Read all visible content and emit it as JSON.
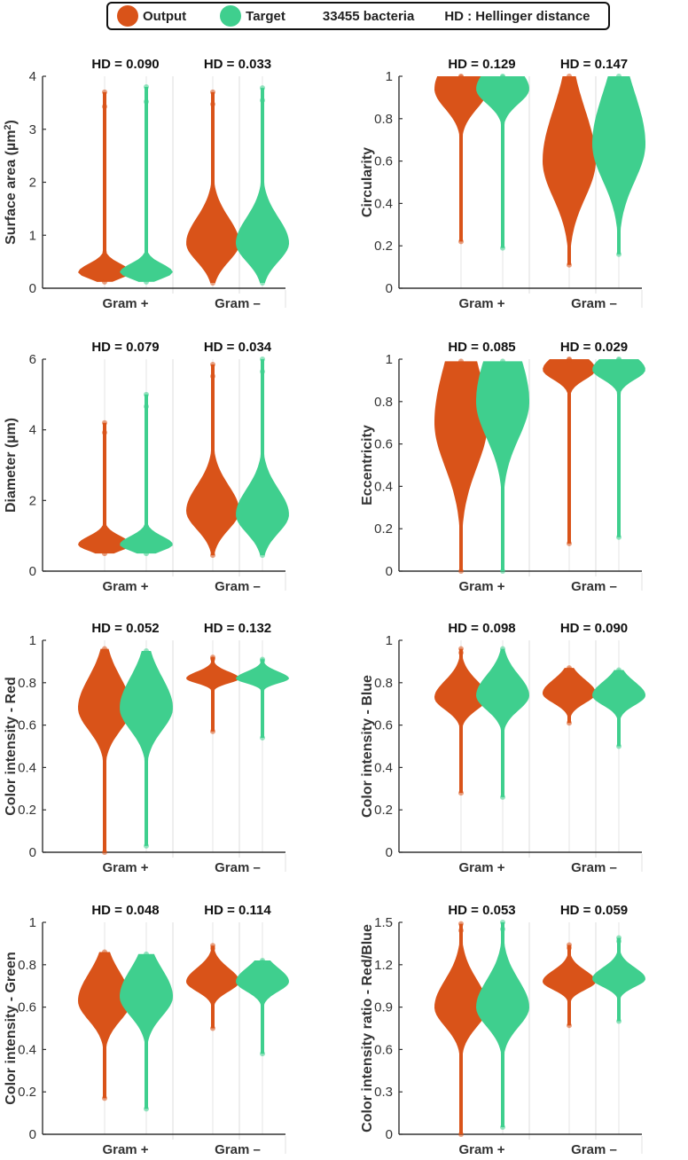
{
  "legend": {
    "output_label": "Output",
    "target_label": "Target",
    "count_label": "33455 bacteria",
    "hd_label": "HD : Hellinger distance",
    "colors": {
      "output": "#d95319",
      "target": "#3fcf8e"
    }
  },
  "chart_data": [
    {
      "type": "violin",
      "ylabel": "Surface area (µm²)",
      "ylabel_base": "Surface area (µm",
      "ylim": [
        0,
        4
      ],
      "yticks": [
        "0",
        "1",
        "2",
        "3",
        "4"
      ],
      "categories": [
        "Gram +",
        "Gram –"
      ],
      "hd": [
        "HD = 0.090",
        "HD = 0.033"
      ],
      "series": [
        {
          "name": "Output",
          "groups": [
            {
              "mode": 0.3,
              "min": 0.12,
              "max": 3.7,
              "spread": 0.1
            },
            {
              "mode": 0.85,
              "min": 0.1,
              "max": 3.7,
              "spread": 0.3
            }
          ]
        },
        {
          "name": "Target",
          "groups": [
            {
              "mode": 0.3,
              "min": 0.12,
              "max": 3.8,
              "spread": 0.1
            },
            {
              "mode": 0.85,
              "min": 0.1,
              "max": 3.78,
              "spread": 0.3
            }
          ]
        }
      ]
    },
    {
      "type": "violin",
      "ylabel": "Circularity",
      "ylim": [
        0,
        1
      ],
      "yticks": [
        "0",
        "0.2",
        "0.4",
        "0.6",
        "0.8",
        "1"
      ],
      "categories": [
        "Gram +",
        "Gram –"
      ],
      "hd": [
        "HD = 0.129",
        "HD = 0.147"
      ],
      "series": [
        {
          "name": "Output",
          "groups": [
            {
              "mode": 0.94,
              "min": 0.22,
              "max": 1.0,
              "spread": 0.08
            },
            {
              "mode": 0.6,
              "min": 0.11,
              "max": 1.0,
              "spread": 0.15
            }
          ]
        },
        {
          "name": "Target",
          "groups": [
            {
              "mode": 0.94,
              "min": 0.19,
              "max": 1.0,
              "spread": 0.06
            },
            {
              "mode": 0.68,
              "min": 0.16,
              "max": 1.0,
              "spread": 0.15
            }
          ]
        }
      ]
    },
    {
      "type": "violin",
      "ylabel": "Diameter (µm)",
      "ylim": [
        0,
        6
      ],
      "yticks": [
        "0",
        "2",
        "4",
        "6"
      ],
      "categories": [
        "Gram +",
        "Gram –"
      ],
      "hd": [
        "HD = 0.079",
        "HD = 0.034"
      ],
      "series": [
        {
          "name": "Output",
          "groups": [
            {
              "mode": 0.75,
              "min": 0.5,
              "max": 4.2,
              "spread": 0.15
            },
            {
              "mode": 1.7,
              "min": 0.45,
              "max": 5.85,
              "spread": 0.45
            }
          ]
        },
        {
          "name": "Target",
          "groups": [
            {
              "mode": 0.75,
              "min": 0.5,
              "max": 5.0,
              "spread": 0.15
            },
            {
              "mode": 1.6,
              "min": 0.45,
              "max": 6.0,
              "spread": 0.45
            }
          ]
        }
      ]
    },
    {
      "type": "violin",
      "ylabel": "Eccentricity",
      "ylim": [
        0,
        1
      ],
      "yticks": [
        "0",
        "0.2",
        "0.4",
        "0.6",
        "0.8",
        "1"
      ],
      "categories": [
        "Gram +",
        "Gram –"
      ],
      "hd": [
        "HD = 0.085",
        "HD = 0.029"
      ],
      "series": [
        {
          "name": "Output",
          "groups": [
            {
              "mode": 0.7,
              "min": 0.0,
              "max": 0.99,
              "spread": 0.18
            },
            {
              "mode": 0.95,
              "min": 0.13,
              "max": 1.0,
              "spread": 0.04
            }
          ]
        },
        {
          "name": "Target",
          "groups": [
            {
              "mode": 0.8,
              "min": 0.0,
              "max": 0.99,
              "spread": 0.15
            },
            {
              "mode": 0.95,
              "min": 0.16,
              "max": 1.0,
              "spread": 0.04
            }
          ]
        }
      ]
    },
    {
      "type": "violin",
      "ylabel": "Color intensity - Red",
      "ylim": [
        0,
        1
      ],
      "yticks": [
        "0",
        "0.2",
        "0.4",
        "0.6",
        "0.8",
        "1"
      ],
      "categories": [
        "Gram +",
        "Gram –"
      ],
      "hd": [
        "HD = 0.052",
        "HD = 0.132"
      ],
      "series": [
        {
          "name": "Output",
          "groups": [
            {
              "mode": 0.68,
              "min": 0.0,
              "max": 0.96,
              "spread": 0.09
            },
            {
              "mode": 0.82,
              "min": 0.57,
              "max": 0.92,
              "spread": 0.02
            }
          ]
        },
        {
          "name": "Target",
          "groups": [
            {
              "mode": 0.68,
              "min": 0.03,
              "max": 0.95,
              "spread": 0.09
            },
            {
              "mode": 0.82,
              "min": 0.54,
              "max": 0.91,
              "spread": 0.02
            }
          ]
        }
      ]
    },
    {
      "type": "violin",
      "ylabel": "Color intensity - Blue",
      "ylim": [
        0,
        1
      ],
      "yticks": [
        "0",
        "0.2",
        "0.4",
        "0.6",
        "0.8",
        "1"
      ],
      "categories": [
        "Gram +",
        "Gram –"
      ],
      "hd": [
        "HD = 0.098",
        "HD = 0.090"
      ],
      "series": [
        {
          "name": "Output",
          "groups": [
            {
              "mode": 0.73,
              "min": 0.28,
              "max": 0.96,
              "spread": 0.05
            },
            {
              "mode": 0.75,
              "min": 0.61,
              "max": 0.87,
              "spread": 0.04
            }
          ]
        },
        {
          "name": "Target",
          "groups": [
            {
              "mode": 0.74,
              "min": 0.26,
              "max": 0.96,
              "spread": 0.06
            },
            {
              "mode": 0.74,
              "min": 0.5,
              "max": 0.86,
              "spread": 0.04
            }
          ]
        }
      ]
    },
    {
      "type": "violin",
      "ylabel": "Color intensity - Green",
      "ylim": [
        0,
        1
      ],
      "yticks": [
        "0",
        "0.2",
        "0.4",
        "0.6",
        "0.8",
        "1"
      ],
      "categories": [
        "Gram +",
        "Gram –"
      ],
      "hd": [
        "HD = 0.048",
        "HD = 0.114"
      ],
      "series": [
        {
          "name": "Output",
          "groups": [
            {
              "mode": 0.63,
              "min": 0.17,
              "max": 0.86,
              "spread": 0.08
            },
            {
              "mode": 0.72,
              "min": 0.5,
              "max": 0.89,
              "spread": 0.04
            }
          ]
        },
        {
          "name": "Target",
          "groups": [
            {
              "mode": 0.65,
              "min": 0.12,
              "max": 0.85,
              "spread": 0.08
            },
            {
              "mode": 0.72,
              "min": 0.38,
              "max": 0.82,
              "spread": 0.04
            }
          ]
        }
      ]
    },
    {
      "type": "violin",
      "ylabel": "Color intensity ratio - Red/Blue",
      "ylim": [
        0,
        1.5
      ],
      "yticks": [
        "0",
        "0.3",
        "0.6",
        "0.9",
        "1.2",
        "1.5"
      ],
      "categories": [
        "Gram +",
        "Gram –"
      ],
      "hd": [
        "HD = 0.053",
        "HD = 0.059"
      ],
      "series": [
        {
          "name": "Output",
          "groups": [
            {
              "mode": 0.9,
              "min": 0.0,
              "max": 1.49,
              "spread": 0.12
            },
            {
              "mode": 1.08,
              "min": 0.77,
              "max": 1.34,
              "spread": 0.05
            }
          ]
        },
        {
          "name": "Target",
          "groups": [
            {
              "mode": 0.9,
              "min": 0.05,
              "max": 1.5,
              "spread": 0.12
            },
            {
              "mode": 1.1,
              "min": 0.8,
              "max": 1.39,
              "spread": 0.05
            }
          ]
        }
      ]
    }
  ]
}
